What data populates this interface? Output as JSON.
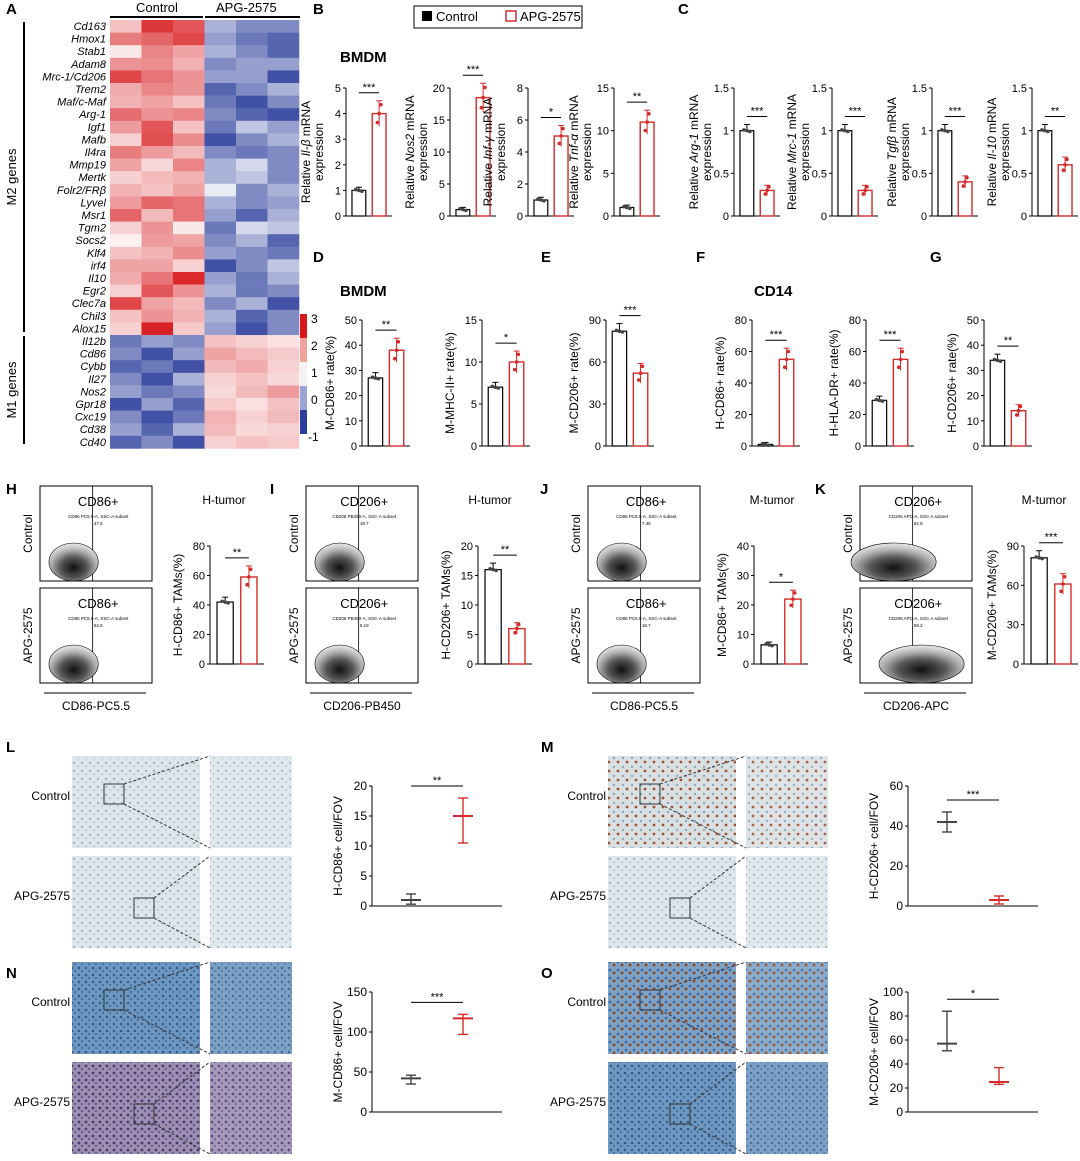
{
  "colors": {
    "control": "#000000",
    "treat": "#d42a2a",
    "hi": "#d7191c",
    "mid": "#ffffff",
    "lo": "#2c3e9c"
  },
  "panel_letters": [
    "A",
    "B",
    "C",
    "D",
    "E",
    "F",
    "G",
    "H",
    "I",
    "J",
    "K",
    "L",
    "M",
    "N",
    "O"
  ],
  "legend": {
    "control": "Control",
    "treat": "APG-2575"
  },
  "headings": {
    "bmdm_b": "BMDM",
    "bmdm_d": "BMDM",
    "cd14": "CD14"
  },
  "groups": {
    "control": "Control",
    "treat": "APG-2575"
  },
  "heatmap": {
    "col_groups": [
      "Control",
      "APG-2575"
    ],
    "row_groups": [
      "M2 genes",
      "M1 genes"
    ],
    "genes": [
      "Cd163",
      "Hmox1",
      "Stab1",
      "Adam8",
      "Mrc-1/Cd206",
      "Trem2",
      "Maf/c-Maf",
      "Arg-1",
      "Igf1",
      "Mafb",
      "Il4ra",
      "Mmp19",
      "Mertk",
      "Folr2/FRβ",
      "Lyvel",
      "Msr1",
      "Tgm2",
      "Socs2",
      "Klf4",
      "irf4",
      "Il10",
      "Egr2",
      "Clec7a",
      "Chil3",
      "Alox15",
      "Il12b",
      "Cd86",
      "Cybb",
      "Il27",
      "Nos2",
      "Gpr18",
      "Cxc19",
      "Cd38",
      "Cd40"
    ],
    "values": [
      [
        0.8,
        2.6,
        2.2,
        -0.4,
        -0.6,
        -0.6
      ],
      [
        1.7,
        2.0,
        2.4,
        -0.5,
        -0.7,
        -0.8
      ],
      [
        0.3,
        1.6,
        1.2,
        -0.4,
        -0.6,
        -0.8
      ],
      [
        1.4,
        1.5,
        1.0,
        -0.6,
        -0.5,
        -0.5
      ],
      [
        2.4,
        1.8,
        1.4,
        -0.5,
        -0.5,
        -0.9
      ],
      [
        1.1,
        1.6,
        1.4,
        -0.8,
        -0.6,
        -0.4
      ],
      [
        1.0,
        1.2,
        0.8,
        -0.7,
        -0.9,
        -0.6
      ],
      [
        1.9,
        1.4,
        1.6,
        -0.6,
        -0.8,
        -0.9
      ],
      [
        1.3,
        2.2,
        0.8,
        -0.7,
        -0.3,
        -0.5
      ],
      [
        0.6,
        2.3,
        1.5,
        -0.9,
        -0.6,
        -0.4
      ],
      [
        1.7,
        1.3,
        0.9,
        -0.6,
        -0.7,
        -0.6
      ],
      [
        1.2,
        0.5,
        1.6,
        -0.4,
        -0.2,
        -0.6
      ],
      [
        0.6,
        0.9,
        1.0,
        -0.4,
        -0.3,
        -0.6
      ],
      [
        1.0,
        0.8,
        1.2,
        -0.1,
        -0.6,
        -0.4
      ],
      [
        1.3,
        2.0,
        1.8,
        -0.4,
        -0.6,
        -0.5
      ],
      [
        2.0,
        0.9,
        1.8,
        -0.5,
        -0.8,
        -0.4
      ],
      [
        0.6,
        1.4,
        0.3,
        -0.7,
        -0.2,
        -0.3
      ],
      [
        0.2,
        1.3,
        1.2,
        -0.6,
        -0.4,
        -0.8
      ],
      [
        0.8,
        1.0,
        1.5,
        -0.5,
        -0.6,
        -0.7
      ],
      [
        1.2,
        1.2,
        0.6,
        -0.9,
        -0.6,
        -0.3
      ],
      [
        1.1,
        1.8,
        2.8,
        -0.5,
        -0.7,
        -0.4
      ],
      [
        0.6,
        2.2,
        1.4,
        -0.4,
        -0.7,
        -0.6
      ],
      [
        2.4,
        1.2,
        0.9,
        -0.6,
        -0.4,
        -0.9
      ],
      [
        0.8,
        1.4,
        1.0,
        -0.4,
        -0.8,
        -0.6
      ],
      [
        0.6,
        2.9,
        0.7,
        -0.5,
        -0.9,
        -0.6
      ],
      [
        -0.7,
        -0.5,
        -0.6,
        0.8,
        0.6,
        0.4
      ],
      [
        -0.6,
        -0.9,
        -0.5,
        1.2,
        0.9,
        0.7
      ],
      [
        -0.8,
        -0.7,
        -0.9,
        0.9,
        1.1,
        0.6
      ],
      [
        -0.6,
        -0.9,
        -0.4,
        0.6,
        0.8,
        0.5
      ],
      [
        -0.5,
        -0.7,
        -0.6,
        0.5,
        0.9,
        1.3
      ],
      [
        -0.9,
        -0.5,
        -0.8,
        0.7,
        0.4,
        0.8
      ],
      [
        -0.6,
        -0.9,
        -0.7,
        1.0,
        0.6,
        0.9
      ],
      [
        -0.5,
        -0.8,
        -0.4,
        0.9,
        0.5,
        0.6
      ],
      [
        -0.8,
        -0.6,
        -0.9,
        0.6,
        0.8,
        0.7
      ]
    ],
    "scale_ticks": [
      "3",
      "2",
      "1",
      "0",
      "-1"
    ]
  },
  "bars": [
    {
      "panel": "B",
      "ylabel": "Relative",
      "gene": "Il-β",
      "unit": "mRNA",
      "line2": "expression",
      "yticks": [
        0,
        1,
        2,
        3,
        4,
        5
      ],
      "ymax": 5,
      "ctrl": 1.0,
      "treat": 4.0,
      "sig": "***"
    },
    {
      "panel": "B",
      "ylabel": "Relative",
      "gene": "Nos2",
      "unit": "mRNA",
      "line2": "expression",
      "yticks": [
        0,
        5,
        10,
        15,
        20
      ],
      "ymax": 20,
      "ctrl": 1.0,
      "treat": 18.5,
      "sig": "***"
    },
    {
      "panel": "B",
      "ylabel": "Relative",
      "gene": "Inf-γ",
      "unit": "mRNA",
      "line2": "expression",
      "yticks": [
        0,
        2,
        4,
        6,
        8
      ],
      "ymax": 8,
      "ctrl": 1.0,
      "treat": 5.0,
      "sig": "*"
    },
    {
      "panel": "B",
      "ylabel": "Relative",
      "gene": "Tnf-α",
      "unit": "mRNA",
      "line2": "expression",
      "yticks": [
        0,
        5,
        10,
        15
      ],
      "ymax": 15,
      "ctrl": 1.0,
      "treat": 11.0,
      "sig": "**"
    },
    {
      "panel": "C",
      "ylabel": "Relative",
      "gene": "Arg-1",
      "unit": "mRNA",
      "line2": "expression",
      "yticks": [
        0.0,
        0.5,
        1.0,
        1.5
      ],
      "ymax": 1.5,
      "ctrl": 1.0,
      "treat": 0.3,
      "sig": "***"
    },
    {
      "panel": "C",
      "ylabel": "Relative",
      "gene": "Mrc-1",
      "unit": "mRNA",
      "line2": "expression",
      "yticks": [
        0.0,
        0.5,
        1.0,
        1.5
      ],
      "ymax": 1.5,
      "ctrl": 1.0,
      "treat": 0.3,
      "sig": "***"
    },
    {
      "panel": "C",
      "ylabel": "Relative",
      "gene": "Tgfβ",
      "unit": "mRNA",
      "line2": "expression",
      "yticks": [
        0.0,
        0.5,
        1.0,
        1.5
      ],
      "ymax": 1.5,
      "ctrl": 1.0,
      "treat": 0.4,
      "sig": "***"
    },
    {
      "panel": "C",
      "ylabel": "Relative",
      "gene": "Il-10",
      "unit": "mRNA",
      "line2": "expression",
      "yticks": [
        0.0,
        0.5,
        1.0,
        1.5
      ],
      "ymax": 1.5,
      "ctrl": 1.0,
      "treat": 0.6,
      "sig": "**"
    },
    {
      "panel": "D",
      "ylabel": "M-CD86+ rate(%)",
      "yticks": [
        0,
        10,
        20,
        30,
        40,
        50
      ],
      "ymax": 50,
      "ctrl": 27,
      "treat": 38,
      "sig": "**"
    },
    {
      "panel": "D",
      "ylabel": "M-MHC-II+ rate(%)",
      "yticks": [
        0,
        5,
        10,
        15
      ],
      "ymax": 15,
      "ctrl": 7,
      "treat": 10,
      "sig": "*"
    },
    {
      "panel": "E",
      "ylabel": "M-CD206+ rate(%)",
      "yticks": [
        0,
        30,
        60,
        90
      ],
      "ymax": 90,
      "ctrl": 82,
      "treat": 52,
      "sig": "***"
    },
    {
      "panel": "F",
      "ylabel": "H-CD86+ rate(%)",
      "yticks": [
        0,
        20,
        40,
        60,
        80
      ],
      "ymax": 80,
      "ctrl": 1,
      "treat": 55,
      "sig": "***"
    },
    {
      "panel": "F",
      "ylabel": "H-HLA-DR+ rate(%)",
      "yticks": [
        0,
        20,
        40,
        60,
        80
      ],
      "ymax": 80,
      "ctrl": 29,
      "treat": 55,
      "sig": "***"
    },
    {
      "panel": "G",
      "ylabel": "H-CD206+ rate(%)",
      "yticks": [
        0,
        10,
        20,
        30,
        40,
        50
      ],
      "ymax": 50,
      "ctrl": 34,
      "treat": 14,
      "sig": "**"
    },
    {
      "panel": "H",
      "ylabel": "H-CD86+ TAMs(%)",
      "yticks": [
        0,
        20,
        40,
        60,
        80
      ],
      "ymax": 80,
      "ctrl": 42,
      "treat": 59,
      "sig": "**"
    },
    {
      "panel": "I",
      "ylabel": "H-CD206+ TAMs(%)",
      "yticks": [
        0,
        5,
        10,
        15,
        20
      ],
      "ymax": 20,
      "ctrl": 16,
      "treat": 6,
      "sig": "**"
    },
    {
      "panel": "J",
      "ylabel": "M-CD86+ TAMs(%)",
      "yticks": [
        0,
        10,
        20,
        30,
        40
      ],
      "ymax": 40,
      "ctrl": 6.5,
      "treat": 22,
      "sig": "*"
    },
    {
      "panel": "K",
      "ylabel": "M-CD206+ TAMs(%)",
      "yticks": [
        0,
        30,
        60,
        90
      ],
      "ymax": 90,
      "ctrl": 81,
      "treat": 61,
      "sig": "***"
    }
  ],
  "flow": [
    {
      "panel": "H",
      "title": "H-tumor",
      "gate": "CD86+",
      "xlabel": "CD86-PC5.5",
      "c_stat": "CD86 PC5.5-A, SSC-A subset",
      "c_val": "47.5",
      "t_stat": "CD86 PC5.5-A, SSC-A subset",
      "t_val": "62.6"
    },
    {
      "panel": "I",
      "title": "H-tumor",
      "gate": "CD206+",
      "xlabel": "CD206-PB450",
      "c_stat": "CD206 PB450-A, SSC-A subset",
      "c_val": "18.7",
      "t_stat": "CD206 PB450-A, SSC-A subset",
      "t_val": "6.19"
    },
    {
      "panel": "J",
      "title": "M-tumor",
      "gate": "CD86+",
      "xlabel": "CD86-PC5.5",
      "c_stat": "CD86 PC5.5-A, SSC-A subset",
      "c_val": "7.45",
      "t_stat": "CD86 PC5.5-A, SSC-A subset",
      "t_val": "18.7"
    },
    {
      "panel": "K",
      "title": "M-tumor",
      "gate": "CD206+",
      "xlabel": "CD206-APC",
      "c_stat": "CD206 APC-A, SSC-A subset",
      "c_val": "82.8",
      "t_stat": "CD206 APC-A, SSC-A subset",
      "t_val": "59.2"
    }
  ],
  "ihc": [
    {
      "panel": "L",
      "ylabel": "H-CD86+ cell/FOV",
      "yticks": [
        0,
        5,
        10,
        15,
        20
      ],
      "ymax": 20,
      "ctrl": [
        1.0,
        0.3,
        2.0
      ],
      "treat": [
        15.0,
        10.5,
        18.0
      ],
      "sig": "**"
    },
    {
      "panel": "M",
      "ylabel": "H-CD206+ cell/FOV",
      "yticks": [
        0,
        20,
        40,
        60
      ],
      "ymax": 60,
      "ctrl": [
        42,
        37,
        47
      ],
      "treat": [
        3,
        1,
        5
      ],
      "sig": "***"
    },
    {
      "panel": "N",
      "ylabel": "M-CD86+ cell/FOV",
      "yticks": [
        0,
        50,
        100,
        150
      ],
      "ymax": 150,
      "ctrl": [
        42,
        35,
        46
      ],
      "treat": [
        117,
        97,
        122
      ],
      "sig": "***"
    },
    {
      "panel": "O",
      "ylabel": "M-CD206+ cell/FOV",
      "yticks": [
        0,
        20,
        40,
        60,
        80,
        100
      ],
      "ymax": 100,
      "ctrl": [
        57,
        51,
        84
      ],
      "treat": [
        25,
        23,
        37
      ],
      "sig": "*"
    }
  ]
}
